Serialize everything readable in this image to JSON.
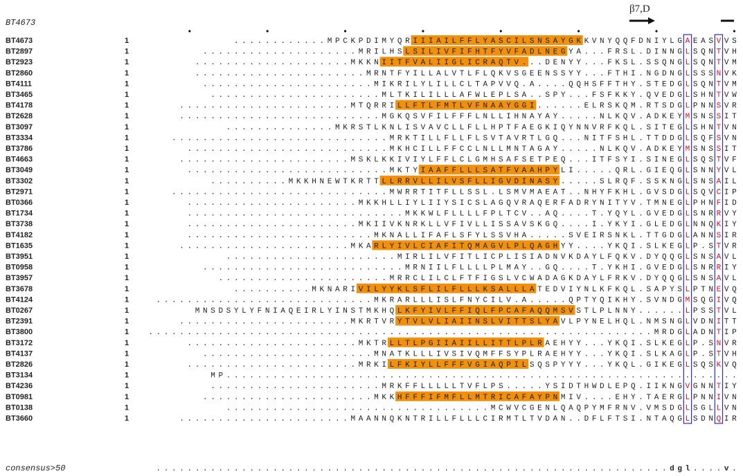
{
  "header": {
    "title": "BT4673",
    "structure_label": "β7,D"
  },
  "footer": {
    "consensus_label": "consensus>50",
    "consensus_seq": "..................................................................dgl....v."
  },
  "colors": {
    "highlight": "#f0900c",
    "red_residue": "#e01010",
    "box": "#2a2ad8",
    "text": "#222222"
  },
  "rows": [
    {
      "name": "BT4673",
      "start": "1",
      "seq": "............MPCKPDIMYQRIIIAILFFLYASCILSNSAYGKKVNYQQFDNIYLGAEASVVS",
      "helix": [
        23,
        44
      ]
    },
    {
      "name": "BT2897",
      "start": "1",
      "seq": "....................MRILHSLSILIVFIFHTFYVFADLNEGYA...FRSL.DINNGLSQNTVH",
      "helix": [
        26,
        46
      ]
    },
    {
      "name": "BT2923",
      "start": "1",
      "seq": "....................MKKNIITFVALIIGLICRAQTV...DENYY...FKSL.SSQNGLSQNTVM",
      "helix": [
        24,
        42
      ]
    },
    {
      "name": "BT2860",
      "start": "1",
      "seq": "......................MRNTFYILLALVTLFLQKVSGEENSSYY...FTHI.NGDNGLSSSNVK",
      "helix": null
    },
    {
      "name": "BT4111",
      "start": "1",
      "seq": "......................MIKRILYLILLCLTAPVVQ.A....QQHSFFTHY.STEDGLSQNTVM",
      "helix": null
    },
    {
      "name": "BT3465",
      "start": "1",
      "seq": "......................MLTKILILLLAFWLEPLSA..SPY...FSFKKY.QVEDGLSHNTVW",
      "helix": null
    },
    {
      "name": "BT4178",
      "start": "1",
      "seq": "......................MTQRRILLFTLFMTLVFNAAYGGI......ELRSKQM.RTSDGLPNNSVR",
      "helix": [
        28,
        45
      ]
    },
    {
      "name": "BT2628",
      "start": "1",
      "seq": "..........................MGKQSVFILFFFLNLLIHNAYAY.....NLKQV.ADKEYMSNSSIT",
      "helix": null
    },
    {
      "name": "BT3097",
      "start": "1",
      "seq": "..............MKRSTLKNLISVAVCLLFLLHPTFAEGKIQYNNVRFKQL.SITEGLSHNTVN",
      "helix": null
    },
    {
      "name": "BT3334",
      "start": "1",
      "seq": "............................MRKTILLFLLFLSVTAVRTLGQ...NITFSHL.TTDDGLSQFSVN",
      "helix": null
    },
    {
      "name": "BT3786",
      "start": "1",
      "seq": "..........................MKHCILLFFCCLNLLMNTAGAY.....NLKQV.ADKEYMSNSSIT",
      "helix": null
    },
    {
      "name": "BT4663",
      "start": "1",
      "seq": "......................MSKLKKIVIYLFFLCLGMHSAFSETPEQ...ITFSYI.SINEGLSQSTVF",
      "helix": null
    },
    {
      "name": "BT3049",
      "start": "1",
      "seq": "..........................MKTYIAAFFLLLSATFVAAHPYLI.....QRL.GIEQGLSNNYVL",
      "helix": [
        30,
        47
      ]
    },
    {
      "name": "BT3302",
      "start": "1",
      "seq": "..........MKKHNEWTKRTTLLRRVLLILVSFLLIGVDINASY.....SLRQF.SSKNGLSNSAIL",
      "helix": [
        22,
        44
      ]
    },
    {
      "name": "BT2971",
      "start": "1",
      "seq": "............................MWRRTITFLLSSL.LSMVMAEAT..NHYFKHL.GVSDGLSQVCIP",
      "helix": null
    },
    {
      "name": "BT0366",
      "start": "1",
      "seq": "......................MKKHLLIYLIIYSICSLAGQVRAQERFADRYNITYV.TMNEGLPHNFID",
      "helix": null
    },
    {
      "name": "BT1734",
      "start": "1",
      "seq": "............................MKKWLFLLLLFPLTCV..AQ....T.YQYL.GVEDGLSNRRVY",
      "helix": null
    },
    {
      "name": "BT3738",
      "start": "1",
      "seq": "......................MKIIVKNRKLLVFIVLLISSAVSKGQ....I.YKYI.GLEDGLNNQKIY",
      "helix": null
    },
    {
      "name": "BT4182",
      "start": "1",
      "seq": "........................MKNALLIFAFLSFYLSSVHA.....SVEIRSNKL.TTGDGLANNSIR",
      "helix": null
    },
    {
      "name": "BT1635",
      "start": "1",
      "seq": "......................MKARLYIVLCIAFITQMAGVLPLQAGHYY....YKQI.SLKEGLP.STVR",
      "helix": [
        25,
        48
      ]
    },
    {
      "name": "BT3951",
      "start": "1",
      "seq": "......................MIRLILVFITLICPLISIADNVKDAYLFQKV.DYQQGLSNSAVL",
      "helix": null
    },
    {
      "name": "BT0958",
      "start": "1",
      "seq": "..........................MRNIILFLLLLPLMAY..GQ....T.YKHI.GVEDGLSNRRIY",
      "helix": null
    },
    {
      "name": "BT3957",
      "start": "1",
      "seq": "......................MRRCLILCLFTFIGSLVCWADAGKDAYLFRKV.DYQQGLSNSAVL",
      "helix": null
    },
    {
      "name": "BT3678",
      "start": "1",
      "seq": "..........MKNARIVILYYKLSFLILFLLLKSALLLATEDVIYNLKFKQL.SAPYSLPTNEVQ",
      "helix": [
        16,
        38
      ]
    },
    {
      "name": "BT4124",
      "start": "1",
      "seq": "............................MKRARLLLISLFNYCILV.A.....QPTYQIKHY.SVNDGMSQGIVQ",
      "helix": null
    },
    {
      "name": "BT0267",
      "start": "1",
      "seq": "MNSDSYLYFNIAQEIRLYINSTMKHQLKFYIVLFFIQLFPCAFAQQMSVSTLPLNNY......LPSSTVL",
      "helix": [
        26,
        48
      ]
    },
    {
      "name": "BT2391",
      "start": "1",
      "seq": "......................MKRTVRYTVLVLIAIINSLVITTSLYAVLPYNELHQL.NMSNGLVDNITT",
      "helix": [
        28,
        48
      ]
    },
    {
      "name": "BT3800",
      "start": "1",
      "seq": ".................................................................MRDGLADNTIP",
      "helix": null
    },
    {
      "name": "BT3172",
      "start": "1",
      "seq": "......................MKTRLLTLPGIIAIILLITTLPLRAEHYY...YKQI.SLKEGLP.SNVR",
      "helix": [
        26,
        45
      ]
    },
    {
      "name": "BT4137",
      "start": "1",
      "seq": "......................MNATKLLLIVSIVQMFFSYPLRAEHYY...YKQI.SLKAGLP.STVH",
      "helix": null
    },
    {
      "name": "BT2826",
      "start": "1",
      "seq": "......................MRKILFKIYLLFFFVGIAQPILSQSPYYY...YKQL.GIKEGLSQSKVQ",
      "helix": [
        26,
        43
      ]
    },
    {
      "name": "BT3134",
      "start": "1",
      "seq": "MP..................................................................",
      "helix": null
    },
    {
      "name": "BT4236",
      "start": "1",
      "seq": "......................MRKFFLLLLLTVFLPS.....YSIDTHWDLEPQ.IIKNGVGNNTIY",
      "helix": null
    },
    {
      "name": "BT0981",
      "start": "1",
      "seq": "......................MKKHFFFIFMFLLMTRICAFAYPNMIV....EHY.TAERGLPNNIVN",
      "helix": [
        25,
        45
      ]
    },
    {
      "name": "BT0138",
      "start": "1",
      "seq": "..................................MCWVCGENLQAQPYMFRNV.VMSDGLSGLLVN",
      "helix": null
    },
    {
      "name": "BT3660",
      "start": "1",
      "seq": "......................MAANNQKNTRILLFLLLCIRMTLTVDAN..DFLFTSI.NTAQGLSDNQIR",
      "helix": null
    }
  ]
}
